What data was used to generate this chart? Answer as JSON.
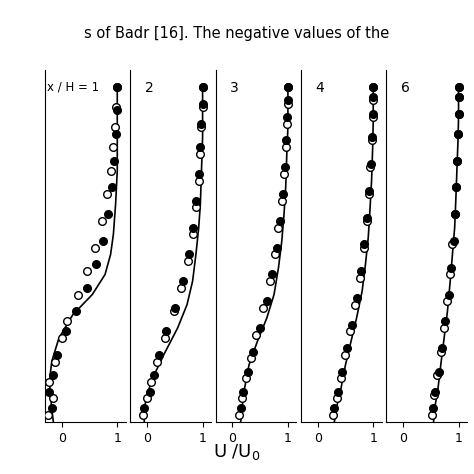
{
  "sections": [
    "1",
    "2",
    "3",
    "4",
    "6"
  ],
  "header_text": "s of Badr [16]. The negative values of the",
  "background_color": "#ffffff",
  "line_profiles": {
    "1": {
      "u": [
        -0.15,
        -0.18,
        -0.2,
        -0.22,
        -0.18,
        -0.05,
        0.2,
        0.55,
        0.78,
        0.88,
        0.93,
        0.97,
        1.0,
        1.0,
        1.0
      ],
      "y": [
        0.0,
        0.04,
        0.08,
        0.12,
        0.18,
        0.25,
        0.32,
        0.38,
        0.44,
        0.5,
        0.56,
        0.65,
        0.75,
        0.85,
        1.0
      ]
    },
    "2": {
      "u": [
        -0.05,
        -0.05,
        0.0,
        0.1,
        0.3,
        0.55,
        0.72,
        0.82,
        0.88,
        0.93,
        0.96,
        0.98,
        1.0,
        1.0,
        1.0
      ],
      "y": [
        0.0,
        0.04,
        0.08,
        0.13,
        0.2,
        0.28,
        0.35,
        0.42,
        0.5,
        0.58,
        0.65,
        0.75,
        0.85,
        0.92,
        1.0
      ]
    },
    "3": {
      "u": [
        0.15,
        0.18,
        0.22,
        0.3,
        0.45,
        0.62,
        0.75,
        0.83,
        0.89,
        0.93,
        0.96,
        0.98,
        1.0,
        1.0,
        1.0
      ],
      "y": [
        0.0,
        0.05,
        0.1,
        0.17,
        0.24,
        0.31,
        0.38,
        0.46,
        0.54,
        0.62,
        0.7,
        0.8,
        0.88,
        0.94,
        1.0
      ]
    },
    "4": {
      "u": [
        0.3,
        0.35,
        0.42,
        0.5,
        0.6,
        0.7,
        0.8,
        0.86,
        0.91,
        0.94,
        0.97,
        0.99,
        1.0,
        1.0,
        1.0
      ],
      "y": [
        0.0,
        0.05,
        0.1,
        0.17,
        0.24,
        0.31,
        0.39,
        0.47,
        0.55,
        0.63,
        0.72,
        0.82,
        0.9,
        0.96,
        1.0
      ]
    },
    "6": {
      "u": [
        0.55,
        0.58,
        0.63,
        0.68,
        0.74,
        0.8,
        0.85,
        0.89,
        0.93,
        0.95,
        0.97,
        0.99,
        1.0,
        1.0,
        1.0
      ],
      "y": [
        0.0,
        0.05,
        0.1,
        0.17,
        0.25,
        0.33,
        0.42,
        0.5,
        0.58,
        0.66,
        0.75,
        0.84,
        0.91,
        0.96,
        1.0
      ]
    }
  },
  "open_circles": {
    "1": {
      "u": [
        -0.25,
        -0.15,
        -0.22,
        -0.12,
        0.0,
        0.1,
        0.3,
        0.45,
        0.6,
        0.72,
        0.82,
        0.88,
        0.92,
        0.96,
        0.98,
        1.0
      ],
      "y": [
        0.02,
        0.07,
        0.12,
        0.18,
        0.25,
        0.3,
        0.38,
        0.45,
        0.52,
        0.6,
        0.68,
        0.75,
        0.82,
        0.88,
        0.94,
        1.0
      ]
    },
    "2": {
      "u": [
        -0.08,
        0.0,
        0.08,
        0.18,
        0.32,
        0.48,
        0.62,
        0.74,
        0.82,
        0.88,
        0.93,
        0.96,
        0.98,
        1.0,
        1.0
      ],
      "y": [
        0.02,
        0.07,
        0.12,
        0.18,
        0.25,
        0.33,
        0.4,
        0.48,
        0.56,
        0.64,
        0.72,
        0.8,
        0.88,
        0.94,
        1.0
      ]
    },
    "3": {
      "u": [
        0.12,
        0.18,
        0.25,
        0.33,
        0.42,
        0.55,
        0.67,
        0.76,
        0.83,
        0.89,
        0.93,
        0.96,
        0.98,
        1.0,
        1.0
      ],
      "y": [
        0.02,
        0.07,
        0.13,
        0.19,
        0.26,
        0.34,
        0.42,
        0.5,
        0.58,
        0.66,
        0.74,
        0.82,
        0.89,
        0.95,
        1.0
      ]
    },
    "4": {
      "u": [
        0.28,
        0.34,
        0.42,
        0.5,
        0.59,
        0.68,
        0.76,
        0.83,
        0.88,
        0.92,
        0.95,
        0.97,
        0.99,
        1.0,
        1.0
      ],
      "y": [
        0.02,
        0.07,
        0.13,
        0.2,
        0.27,
        0.35,
        0.43,
        0.52,
        0.6,
        0.68,
        0.76,
        0.84,
        0.91,
        0.96,
        1.0
      ]
    },
    "6": {
      "u": [
        0.52,
        0.56,
        0.62,
        0.68,
        0.74,
        0.8,
        0.85,
        0.89,
        0.93,
        0.96,
        0.98,
        0.99,
        1.0,
        1.0,
        1.0
      ],
      "y": [
        0.02,
        0.08,
        0.14,
        0.21,
        0.28,
        0.36,
        0.44,
        0.53,
        0.62,
        0.7,
        0.78,
        0.86,
        0.92,
        0.97,
        1.0
      ]
    }
  },
  "filled_circles": {
    "1": {
      "u": [
        -0.18,
        -0.22,
        -0.15,
        -0.08,
        0.08,
        0.25,
        0.45,
        0.62,
        0.75,
        0.84,
        0.9,
        0.94,
        0.97,
        0.99,
        1.0
      ],
      "y": [
        0.04,
        0.09,
        0.14,
        0.2,
        0.27,
        0.33,
        0.4,
        0.47,
        0.54,
        0.62,
        0.7,
        0.78,
        0.86,
        0.93,
        1.0
      ]
    },
    "2": {
      "u": [
        -0.05,
        0.05,
        0.12,
        0.22,
        0.35,
        0.5,
        0.64,
        0.75,
        0.83,
        0.88,
        0.93,
        0.96,
        0.98,
        1.0,
        1.0
      ],
      "y": [
        0.04,
        0.09,
        0.14,
        0.2,
        0.27,
        0.34,
        0.42,
        0.5,
        0.58,
        0.66,
        0.74,
        0.82,
        0.89,
        0.95,
        1.0
      ]
    },
    "3": {
      "u": [
        0.15,
        0.2,
        0.28,
        0.38,
        0.5,
        0.62,
        0.72,
        0.8,
        0.86,
        0.91,
        0.95,
        0.97,
        0.99,
        1.0,
        1.0
      ],
      "y": [
        0.04,
        0.09,
        0.15,
        0.21,
        0.28,
        0.36,
        0.44,
        0.52,
        0.6,
        0.68,
        0.76,
        0.84,
        0.91,
        0.96,
        1.0
      ]
    },
    "4": {
      "u": [
        0.3,
        0.36,
        0.44,
        0.52,
        0.61,
        0.7,
        0.78,
        0.84,
        0.89,
        0.93,
        0.96,
        0.98,
        0.99,
        1.0,
        1.0
      ],
      "y": [
        0.04,
        0.09,
        0.15,
        0.22,
        0.29,
        0.37,
        0.45,
        0.53,
        0.61,
        0.69,
        0.77,
        0.85,
        0.92,
        0.97,
        1.0
      ]
    },
    "6": {
      "u": [
        0.54,
        0.58,
        0.64,
        0.7,
        0.76,
        0.82,
        0.87,
        0.91,
        0.94,
        0.96,
        0.98,
        0.99,
        1.0,
        1.0,
        1.0
      ],
      "y": [
        0.04,
        0.09,
        0.15,
        0.22,
        0.3,
        0.38,
        0.46,
        0.54,
        0.62,
        0.7,
        0.78,
        0.86,
        0.92,
        0.97,
        1.0
      ]
    }
  },
  "xlim": [
    -0.3,
    1.15
  ],
  "ylim": [
    0.0,
    1.05
  ],
  "xticks": [
    0,
    1
  ],
  "marker_size": 5.5,
  "line_color": "#000000",
  "open_color": "#ffffff",
  "filled_color": "#000000",
  "edge_color": "#000000"
}
